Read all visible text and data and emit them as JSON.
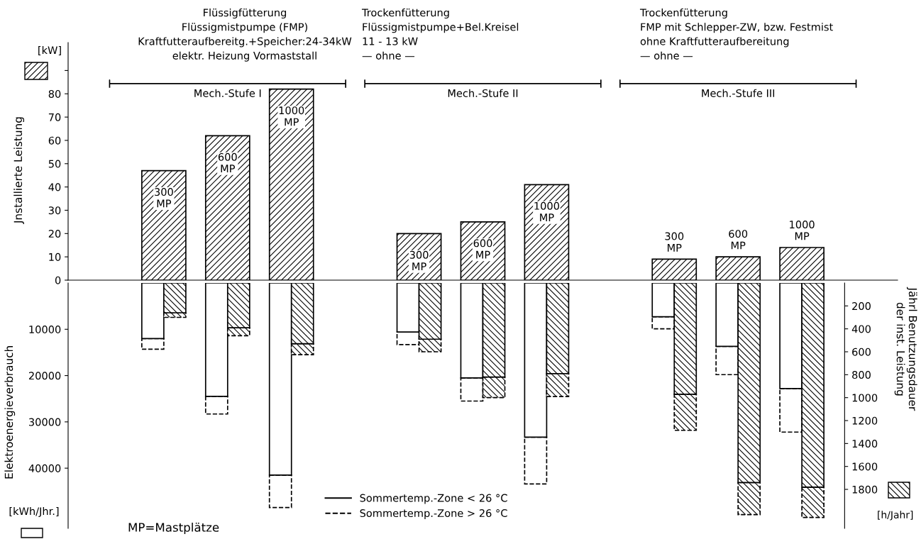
{
  "chart_data": [
    {
      "type": "bar",
      "categories": [
        null,
        "300 MP",
        "600 MP",
        "1000 MP",
        null,
        "300 MP",
        "600 MP",
        "1000 MP",
        null,
        "300 MP",
        "600 MP",
        "1000 MP",
        null
      ],
      "series": [
        {
          "color": "#000000",
          "values": [
            null,
            47,
            62,
            82,
            null,
            20,
            25,
            41,
            null,
            9,
            10,
            14,
            null
          ]
        }
      ],
      "ylabel": "Jnstallierte Leistung",
      "ylim": [
        0,
        102
      ],
      "yticks": [
        0,
        10,
        20,
        30,
        40,
        50,
        60,
        70,
        80,
        {
          "value": 90,
          "label": null
        }
      ],
      "grid": false,
      "annotations": [
        "Flüssigfütterung\nFlüssigmistpumpe (FMP)\nKraftfutteraufbereitg.+Speicher:24-34kW\nelektr. Heizung Vormaststall",
        "Trockenfütterung\nFlüssigmistpumpe+Bel.Kreisel\n11 - 13 kW\n— ohne —",
        "Trockenfütterung\nFMP mit Schlepper-ZW, bzw. Festmist\nohne Kraftfutteraufbereitung\n— ohne —",
        "Mech.-Stufe I",
        "Mech.-Stufe II",
        "Mech.-Stufe III",
        "[kW]"
      ]
    },
    {
      "type": "bar",
      "stacked": true,
      "categories": [
        null,
        null,
        null,
        null,
        null,
        null,
        null,
        null,
        null,
        null,
        null,
        null,
        null
      ],
      "series": [
        {
          "axis": "y",
          "name": "Sommertemp.-Zone < 26 °C",
          "color": "#000000",
          "line_style": "solid",
          "values": [
            null,
            12000,
            24500,
            41500,
            null,
            10600,
            20500,
            33300,
            null,
            7300,
            13700,
            22800,
            null
          ]
        },
        {
          "axis": "y",
          "name": "Sommertemp.-Zone > 26 °C",
          "color": "#000000",
          "line_style": "dashed",
          "values": [
            null,
            2300,
            3800,
            7000,
            null,
            2700,
            5000,
            10100,
            null,
            2600,
            6100,
            9400,
            null
          ]
        },
        {
          "axis": "y2",
          "color": "#000000",
          "line_style": "solid",
          "values": [
            null,
            260,
            390,
            530,
            null,
            490,
            820,
            790,
            null,
            970,
            1740,
            1780,
            null
          ]
        },
        {
          "axis": "y2",
          "color": "#000000",
          "line_style": "dashed",
          "values": [
            null,
            40,
            70,
            95,
            null,
            110,
            180,
            200,
            null,
            315,
            280,
            265,
            null
          ]
        }
      ],
      "ylabel": "Elektroenergieverbrauch",
      "y2label": "Jährl Benutzungsdauer\nder inst. Leistung",
      "ylim": [
        53000,
        0
      ],
      "yticks": [
        10000,
        20000,
        30000,
        40000
      ],
      "y2lim": [
        2140,
        0
      ],
      "y2ticks": [
        200,
        400,
        600,
        800,
        1000,
        1200,
        1400,
        1600,
        1800
      ],
      "legend": "bottom",
      "grid": false,
      "annotations": [
        "[kWh/Jhr.]",
        "[h/Jahr]",
        "MP=Mastplätze"
      ]
    }
  ]
}
